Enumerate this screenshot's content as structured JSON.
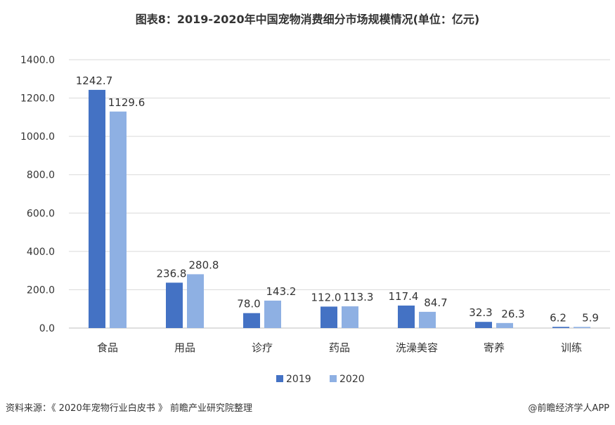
{
  "title": "图表8：2019-2020年中国宠物消费细分市场规模情况(单位：亿元)",
  "source": "资料来源：《 2020年宠物行业白皮书 》 前瞻产业研究院整理",
  "brand": "@前瞻经济学人APP",
  "colors": {
    "s2019": "#4472c4",
    "s2020": "#8eb0e3",
    "grid": "#d9d9d9",
    "axis": "#bfbfbf"
  },
  "chart_data": {
    "type": "bar",
    "title": "图表8：2019-2020年中国宠物消费细分市场规模情况(单位：亿元)",
    "categories": [
      "食品",
      "用品",
      "诊疗",
      "药品",
      "洗澡美容",
      "寄养",
      "训练"
    ],
    "series": [
      {
        "name": "2019",
        "values": [
          1242.7,
          236.8,
          78.0,
          112.0,
          117.4,
          32.3,
          6.2
        ],
        "labels": [
          "1242.7",
          "236.8",
          "78.0",
          "112.0",
          "117.4",
          "32.3",
          "6.2"
        ]
      },
      {
        "name": "2020",
        "values": [
          1129.6,
          280.8,
          143.2,
          113.3,
          84.7,
          26.3,
          5.9
        ],
        "labels": [
          "1129.6",
          "280.8",
          "143.2",
          "113.3",
          "84.7",
          "26.3",
          "5.9"
        ]
      }
    ],
    "yticks": [
      "0.0",
      "200.0",
      "400.0",
      "600.0",
      "800.0",
      "1000.0",
      "1200.0",
      "1400.0"
    ],
    "ylim": [
      0,
      1400
    ],
    "grid": true,
    "legend": "bottom"
  }
}
